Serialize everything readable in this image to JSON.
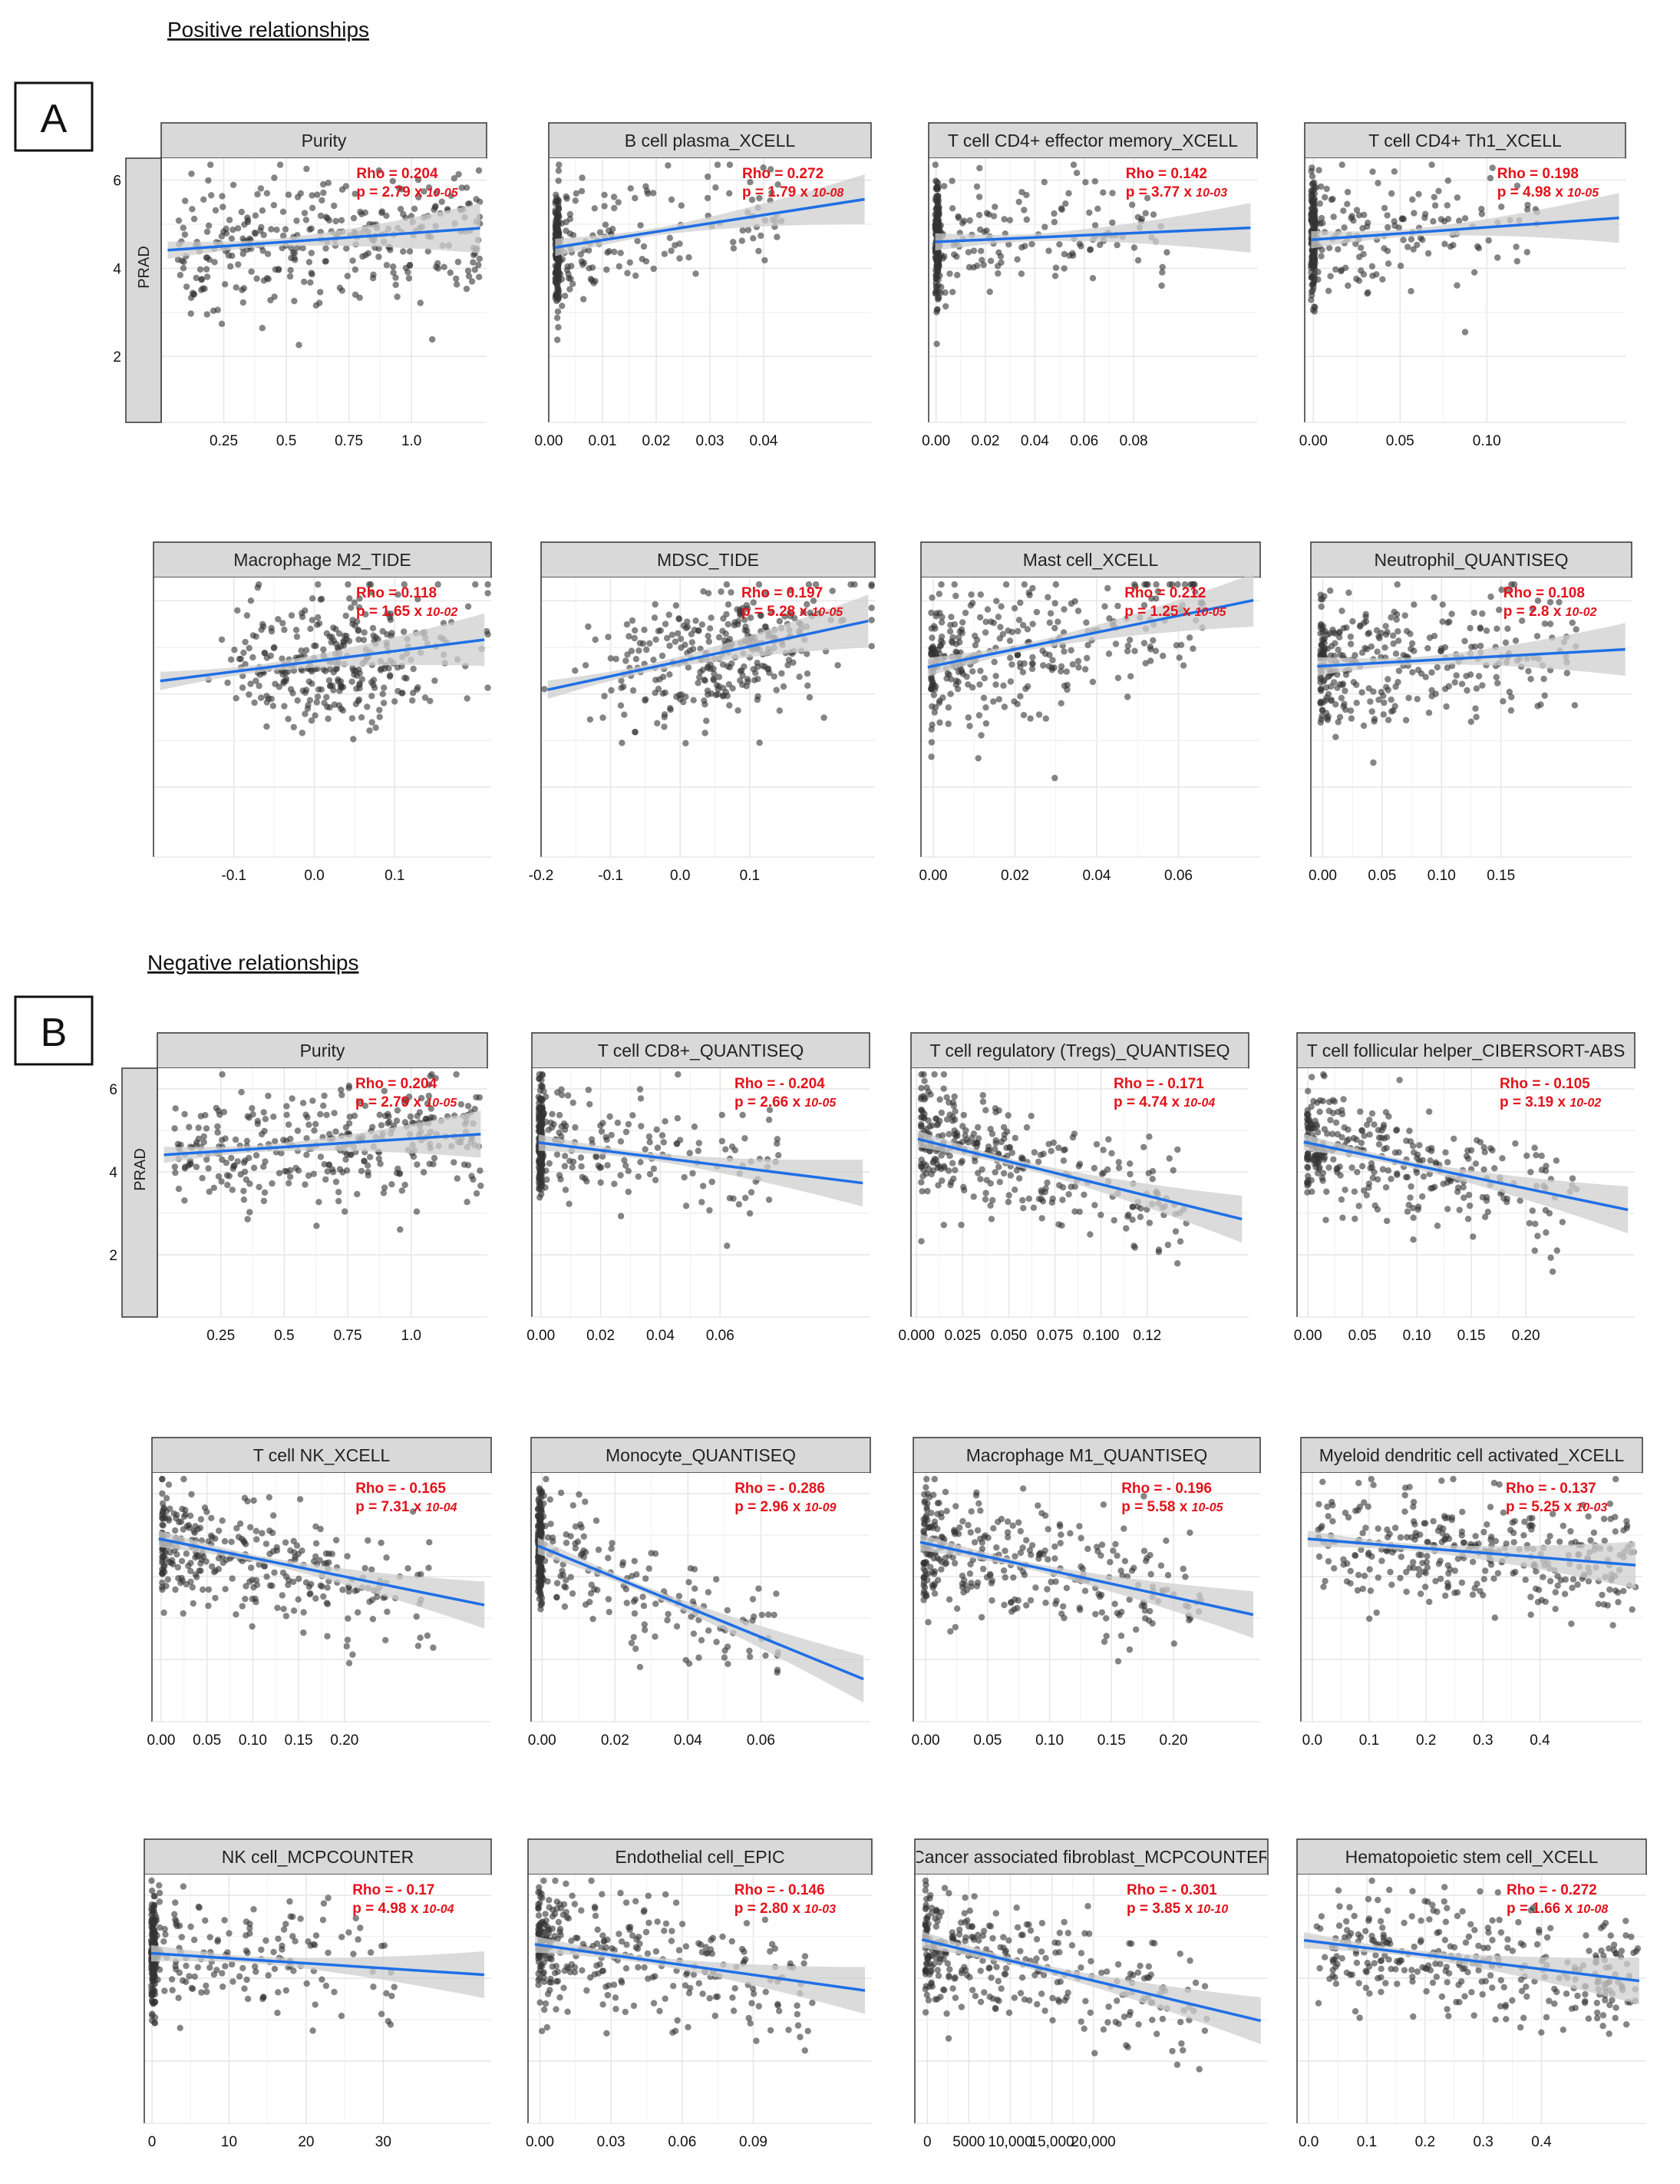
{
  "sections": [
    {
      "letter": "A",
      "title": "Positive relationships"
    },
    {
      "letter": "B",
      "title": "Negative relationships"
    }
  ],
  "y_strip_label": "PRAD",
  "y_ticks": [
    "6",
    "4",
    "2"
  ],
  "colors": {
    "points": "#333333",
    "line": "#1f6fe6",
    "band": "#cfcfcf",
    "stat": "#e3121b",
    "strip": "#d9d9d9",
    "grid": "#e6e6e6"
  },
  "chart_data": [
    {
      "type": "scatter",
      "title": "Purity",
      "ylabel": "PRAD",
      "xlim": [
        0,
        1.3
      ],
      "ylim": [
        0.5,
        6.5
      ],
      "xticks": [
        {
          "v": 0.25,
          "label": "0.25"
        },
        {
          "v": 0.5,
          "label": "0.5"
        },
        {
          "v": 0.75,
          "label": "0.75"
        },
        {
          "v": 1.0,
          "label": "1.0"
        }
      ],
      "rho": "Rho = 0.204",
      "p": "p = 2.79 x ",
      "pexp": "10-05",
      "fit": {
        "intercept": 4.4,
        "slope": 0.4
      },
      "spread": "uniform"
    },
    {
      "type": "scatter",
      "title": "B cell plasma_XCELL",
      "xlim": [
        0,
        0.06
      ],
      "ylim": [
        0.5,
        6.5
      ],
      "xticks": [
        {
          "v": 0,
          "label": "0.00"
        },
        {
          "v": 0.01,
          "label": "0.01"
        },
        {
          "v": 0.02,
          "label": "0.02"
        },
        {
          "v": 0.03,
          "label": "0.03"
        },
        {
          "v": 0.04,
          "label": "0.04"
        }
      ],
      "rho": "Rho = 0.272",
      "p": "p = 1.79 x ",
      "pexp": "10-08",
      "fit": {
        "intercept": 4.45,
        "slope": 19
      },
      "spread": "spike"
    },
    {
      "type": "scatter",
      "title": "T cell CD4+ effector memory_XCELL",
      "xlim": [
        -0.003,
        0.13
      ],
      "ylim": [
        0.5,
        6.5
      ],
      "xticks": [
        {
          "v": 0,
          "label": "0.00"
        },
        {
          "v": 0.02,
          "label": "0.02"
        },
        {
          "v": 0.04,
          "label": "0.04"
        },
        {
          "v": 0.06,
          "label": "0.06"
        },
        {
          "v": 0.08,
          "label": "0.08"
        }
      ],
      "rho": "Rho = 0.142",
      "p": "p = 3.77 x ",
      "pexp": "10-03",
      "fit": {
        "intercept": 4.6,
        "slope": 2.5
      },
      "spread": "spike"
    },
    {
      "type": "scatter",
      "title": "T cell CD4+ Th1_XCELL",
      "xlim": [
        -0.005,
        0.18
      ],
      "ylim": [
        0.5,
        6.5
      ],
      "xticks": [
        {
          "v": 0,
          "label": "0.00"
        },
        {
          "v": 0.05,
          "label": "0.05"
        },
        {
          "v": 0.1,
          "label": "0.10"
        }
      ],
      "rho": "Rho = 0.198",
      "p": "p = 4.98 x ",
      "pexp": "10-05",
      "fit": {
        "intercept": 4.65,
        "slope": 2.8
      },
      "spread": "spike"
    },
    {
      "type": "scatter",
      "title": "Macrophage M2_TIDE",
      "xlim": [
        -0.2,
        0.22
      ],
      "ylim": [
        0.5,
        6.5
      ],
      "xticks": [
        {
          "v": -0.1,
          "label": "-0.1"
        },
        {
          "v": 0,
          "label": "0.0"
        },
        {
          "v": 0.1,
          "label": "0.1"
        }
      ],
      "rho": "Rho = 0.118",
      "p": "p = 1.65 x ",
      "pexp": "10-02",
      "fit": {
        "intercept": 4.7,
        "slope": 2.2
      },
      "spread": "blob"
    },
    {
      "type": "scatter",
      "title": "MDSC_TIDE",
      "xlim": [
        -0.2,
        0.28
      ],
      "ylim": [
        0.5,
        6.5
      ],
      "xticks": [
        {
          "v": -0.2,
          "label": "-0.2"
        },
        {
          "v": -0.1,
          "label": "-0.1"
        },
        {
          "v": 0,
          "label": "0.0"
        },
        {
          "v": 0.1,
          "label": "0.1"
        }
      ],
      "rho": "Rho = 0.197",
      "p": "p = 5.28 x ",
      "pexp": "10-05",
      "fit": {
        "intercept": 4.7,
        "slope": 3.2
      },
      "spread": "blob"
    },
    {
      "type": "scatter",
      "title": "Mast cell_XCELL",
      "xlim": [
        -0.003,
        0.08
      ],
      "ylim": [
        0.5,
        6.5
      ],
      "xticks": [
        {
          "v": 0,
          "label": "0.00"
        },
        {
          "v": 0.02,
          "label": "0.02"
        },
        {
          "v": 0.04,
          "label": "0.04"
        },
        {
          "v": 0.06,
          "label": "0.06"
        }
      ],
      "rho": "Rho = 0.212",
      "p": "p = 1.25 x ",
      "pexp": "10-05",
      "fit": {
        "intercept": 4.6,
        "slope": 18
      },
      "spread": "left"
    },
    {
      "type": "scatter",
      "title": "Neutrophil_QUANTISEQ",
      "xlim": [
        -0.01,
        0.26
      ],
      "ylim": [
        0.5,
        6.5
      ],
      "xticks": [
        {
          "v": 0,
          "label": "0.00"
        },
        {
          "v": 0.05,
          "label": "0.05"
        },
        {
          "v": 0.1,
          "label": "0.10"
        },
        {
          "v": 0.15,
          "label": "0.15"
        }
      ],
      "rho": "Rho = 0.108",
      "p": "p = 2.8 x ",
      "pexp": "10-02",
      "fit": {
        "intercept": 4.6,
        "slope": 1.4
      },
      "spread": "left"
    },
    {
      "type": "scatter",
      "title": "Purity",
      "ylabel": "PRAD",
      "xlim": [
        0,
        1.3
      ],
      "ylim": [
        0.5,
        6.5
      ],
      "xticks": [
        {
          "v": 0.25,
          "label": "0.25"
        },
        {
          "v": 0.5,
          "label": "0.5"
        },
        {
          "v": 0.75,
          "label": "0.75"
        },
        {
          "v": 1.0,
          "label": "1.0"
        }
      ],
      "rho": "Rho = 0.204",
      "p": "p = 2.79 x ",
      "pexp": "10-05",
      "fit": {
        "intercept": 4.4,
        "slope": 0.4
      },
      "spread": "uniform"
    },
    {
      "type": "scatter",
      "title": "T cell CD8+_QUANTISEQ",
      "xlim": [
        -0.003,
        0.11
      ],
      "ylim": [
        0.5,
        6.5
      ],
      "xticks": [
        {
          "v": 0,
          "label": "0.00"
        },
        {
          "v": 0.02,
          "label": "0.02"
        },
        {
          "v": 0.04,
          "label": "0.04"
        },
        {
          "v": 0.06,
          "label": "0.06"
        }
      ],
      "rho": "Rho = - 0.204",
      "p": "p = 2.66 x ",
      "pexp": "10-05",
      "fit": {
        "intercept": 4.7,
        "slope": -9
      },
      "spread": "spike"
    },
    {
      "type": "scatter",
      "title": "T cell regulatory (Tregs)_QUANTISEQ",
      "xlim": [
        -0.003,
        0.18
      ],
      "ylim": [
        0.5,
        6.5
      ],
      "xticks": [
        {
          "v": 0,
          "label": "0.000"
        },
        {
          "v": 0.025,
          "label": "0.025"
        },
        {
          "v": 0.05,
          "label": "0.050"
        },
        {
          "v": 0.075,
          "label": "0.075"
        },
        {
          "v": 0.1,
          "label": "0.100"
        },
        {
          "v": 0.125,
          "label": "0.12"
        }
      ],
      "rho": "Rho = - 0.171",
      "p": "p = 4.74 x ",
      "pexp": "10-04",
      "fit": {
        "intercept": 4.8,
        "slope": -11
      },
      "spread": "left"
    },
    {
      "type": "scatter",
      "title": "T cell follicular helper_CIBERSORT-ABS",
      "xlim": [
        -0.01,
        0.3
      ],
      "ylim": [
        0.5,
        6.5
      ],
      "xticks": [
        {
          "v": 0,
          "label": "0.00"
        },
        {
          "v": 0.05,
          "label": "0.05"
        },
        {
          "v": 0.1,
          "label": "0.10"
        },
        {
          "v": 0.15,
          "label": "0.15"
        },
        {
          "v": 0.2,
          "label": "0.20"
        }
      ],
      "rho": "Rho = - 0.105",
      "p": "p = 3.19 x ",
      "pexp": "10-02",
      "fit": {
        "intercept": 4.7,
        "slope": -5.5
      },
      "spread": "left"
    },
    {
      "type": "scatter",
      "title": "T cell NK_XCELL",
      "xlim": [
        -0.01,
        0.36
      ],
      "ylim": [
        0.5,
        6.5
      ],
      "xticks": [
        {
          "v": 0,
          "label": "0.00"
        },
        {
          "v": 0.05,
          "label": "0.05"
        },
        {
          "v": 0.1,
          "label": "0.10"
        },
        {
          "v": 0.15,
          "label": "0.15"
        },
        {
          "v": 0.2,
          "label": "0.20"
        }
      ],
      "rho": "Rho = - 0.165",
      "p": "p = 7.31 x ",
      "pexp": "10-04",
      "fit": {
        "intercept": 4.9,
        "slope": -4.5
      },
      "spread": "left"
    },
    {
      "type": "scatter",
      "title": "Monocyte_QUANTISEQ",
      "xlim": [
        -0.003,
        0.09
      ],
      "ylim": [
        0.5,
        6.5
      ],
      "xticks": [
        {
          "v": 0,
          "label": "0.00"
        },
        {
          "v": 0.02,
          "label": "0.02"
        },
        {
          "v": 0.04,
          "label": "0.04"
        },
        {
          "v": 0.06,
          "label": "0.06"
        }
      ],
      "rho": "Rho = - 0.286",
      "p": "p = 2.96 x ",
      "pexp": "10-09",
      "fit": {
        "intercept": 4.7,
        "slope": -36
      },
      "spread": "spike"
    },
    {
      "type": "scatter",
      "title": "Macrophage M1_QUANTISEQ",
      "xlim": [
        -0.01,
        0.27
      ],
      "ylim": [
        0.5,
        6.5
      ],
      "xticks": [
        {
          "v": 0,
          "label": "0.00"
        },
        {
          "v": 0.05,
          "label": "0.05"
        },
        {
          "v": 0.1,
          "label": "0.10"
        },
        {
          "v": 0.15,
          "label": "0.15"
        },
        {
          "v": 0.2,
          "label": "0.20"
        }
      ],
      "rho": "Rho = - 0.196",
      "p": "p = 5.58 x ",
      "pexp": "10-05",
      "fit": {
        "intercept": 4.8,
        "slope": -6.5
      },
      "spread": "left"
    },
    {
      "type": "scatter",
      "title": "Myeloid dendritic cell activated_XCELL",
      "xlim": [
        -0.02,
        0.58
      ],
      "ylim": [
        0.5,
        6.5
      ],
      "xticks": [
        {
          "v": 0,
          "label": "0.0"
        },
        {
          "v": 0.1,
          "label": "0.1"
        },
        {
          "v": 0.2,
          "label": "0.2"
        },
        {
          "v": 0.3,
          "label": "0.3"
        },
        {
          "v": 0.4,
          "label": "0.4"
        }
      ],
      "rho": "Rho = - 0.137",
      "p": "p = 5.25 x ",
      "pexp": "10-03",
      "fit": {
        "intercept": 4.9,
        "slope": -1.1
      },
      "spread": "uniform"
    },
    {
      "type": "scatter",
      "title": "NK cell_MCPCOUNTER",
      "xlim": [
        -1,
        44
      ],
      "ylim": [
        0.5,
        6.5
      ],
      "xticks": [
        {
          "v": 0,
          "label": "0"
        },
        {
          "v": 10,
          "label": "10"
        },
        {
          "v": 20,
          "label": "20"
        },
        {
          "v": 30,
          "label": "30"
        }
      ],
      "rho": "Rho = - 0.17",
      "p": "p = 4.98 x ",
      "pexp": "10-04",
      "fit": {
        "intercept": 4.6,
        "slope": -0.012
      },
      "spread": "spike"
    },
    {
      "type": "scatter",
      "title": "Endothelial cell_EPIC",
      "xlim": [
        -0.005,
        0.14
      ],
      "ylim": [
        0.5,
        6.5
      ],
      "xticks": [
        {
          "v": 0,
          "label": "0.00"
        },
        {
          "v": 0.03,
          "label": "0.03"
        },
        {
          "v": 0.06,
          "label": "0.06"
        },
        {
          "v": 0.09,
          "label": "0.09"
        }
      ],
      "rho": "Rho = - 0.146",
      "p": "p = 2.80 x ",
      "pexp": "10-03",
      "fit": {
        "intercept": 4.8,
        "slope": -8
      },
      "spread": "left"
    },
    {
      "type": "scatter",
      "title": "Cancer associated fibroblast_MCPCOUNTER",
      "xlim": [
        -1500,
        41000
      ],
      "ylim": [
        0.5,
        6.5
      ],
      "xticks": [
        {
          "v": 0,
          "label": "0"
        },
        {
          "v": 5000,
          "label": "5000"
        },
        {
          "v": 10000,
          "label": "10,000"
        },
        {
          "v": 15000,
          "label": "15,000"
        },
        {
          "v": 20000,
          "label": "20,000"
        }
      ],
      "rho": "Rho = - 0.301",
      "p": "p = 3.85 x ",
      "pexp": "10-10",
      "fit": {
        "intercept": 4.9,
        "slope": -4.8e-05
      },
      "spread": "left"
    },
    {
      "type": "scatter",
      "title": "Hematopoietic stem cell_XCELL",
      "xlim": [
        -0.02,
        0.58
      ],
      "ylim": [
        0.5,
        6.5
      ],
      "xticks": [
        {
          "v": 0,
          "label": "0.0"
        },
        {
          "v": 0.1,
          "label": "0.1"
        },
        {
          "v": 0.2,
          "label": "0.2"
        },
        {
          "v": 0.3,
          "label": "0.3"
        },
        {
          "v": 0.4,
          "label": "0.4"
        }
      ],
      "rho": "Rho = - 0.272",
      "p": "p = 1.66 x ",
      "pexp": "10-08",
      "fit": {
        "intercept": 4.9,
        "slope": -1.7
      },
      "spread": "uniform"
    }
  ]
}
